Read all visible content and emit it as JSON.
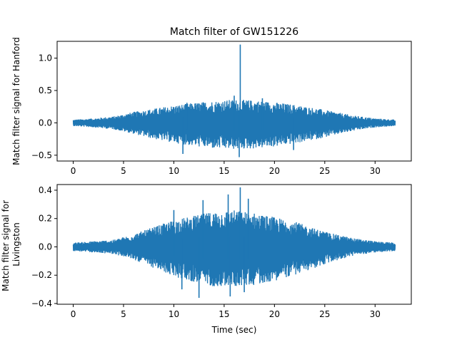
{
  "figure_title": "Match filter of GW151226",
  "x_axis_label": "Time (sec)",
  "series_color": "#1f77b4",
  "chart_data": [
    {
      "type": "line",
      "title": "Match filter of GW151226",
      "ylabel": "Match filter signal for Hanford",
      "xlabel": "",
      "xlim": [
        -1.6,
        33.6
      ],
      "ylim": [
        -0.59,
        1.26
      ],
      "x_ticks": [
        0,
        5,
        10,
        15,
        20,
        25,
        30
      ],
      "x_tick_labels": [
        "0",
        "5",
        "10",
        "15",
        "20",
        "25",
        "30"
      ],
      "y_ticks": [
        -0.5,
        0.0,
        0.5,
        1.0
      ],
      "y_tick_labels": [
        "−0.5",
        "0.0",
        "0.5",
        "1.0"
      ],
      "grid": false,
      "x_range": [
        0,
        32
      ],
      "envelope": {
        "time": [
          0,
          2,
          4,
          6,
          8,
          10,
          12,
          14,
          16,
          18,
          20,
          22,
          24,
          26,
          28,
          30,
          32
        ],
        "upper": [
          0.05,
          0.07,
          0.1,
          0.17,
          0.22,
          0.27,
          0.31,
          0.34,
          0.36,
          0.35,
          0.32,
          0.28,
          0.23,
          0.17,
          0.11,
          0.07,
          0.05
        ],
        "lower": [
          -0.05,
          -0.07,
          -0.1,
          -0.17,
          -0.25,
          -0.31,
          -0.36,
          -0.4,
          -0.41,
          -0.4,
          -0.37,
          -0.32,
          -0.26,
          -0.19,
          -0.12,
          -0.07,
          -0.05
        ]
      },
      "spikes": [
        {
          "x": 16.6,
          "y": 1.21
        },
        {
          "x": 16.0,
          "y": 0.42
        },
        {
          "x": 16.5,
          "y": -0.53
        },
        {
          "x": 10.9,
          "y": -0.48
        },
        {
          "x": 11.3,
          "y": 0.31
        },
        {
          "x": 18.8,
          "y": 0.38
        },
        {
          "x": 21.9,
          "y": -0.42
        }
      ]
    },
    {
      "type": "line",
      "title": "",
      "ylabel": "Match filter signal for Livingston",
      "xlabel": "Time (sec)",
      "xlim": [
        -1.6,
        33.6
      ],
      "ylim": [
        -0.405,
        0.44
      ],
      "x_ticks": [
        0,
        5,
        10,
        15,
        20,
        25,
        30
      ],
      "x_tick_labels": [
        "0",
        "5",
        "10",
        "15",
        "20",
        "25",
        "30"
      ],
      "y_ticks": [
        -0.4,
        -0.2,
        0.0,
        0.2,
        0.4
      ],
      "y_tick_labels": [
        "−0.4",
        "−0.2",
        "0.0",
        "0.2",
        "0.4"
      ],
      "grid": false,
      "x_range": [
        0,
        32
      ],
      "envelope": {
        "time": [
          0,
          2,
          4,
          6,
          8,
          10,
          12,
          14,
          16,
          18,
          20,
          22,
          24,
          26,
          28,
          30,
          32
        ],
        "upper": [
          0.03,
          0.04,
          0.05,
          0.09,
          0.14,
          0.19,
          0.22,
          0.25,
          0.26,
          0.24,
          0.21,
          0.18,
          0.13,
          0.09,
          0.06,
          0.04,
          0.03
        ],
        "lower": [
          -0.03,
          -0.04,
          -0.05,
          -0.09,
          -0.15,
          -0.21,
          -0.25,
          -0.28,
          -0.28,
          -0.27,
          -0.24,
          -0.2,
          -0.15,
          -0.1,
          -0.06,
          -0.04,
          -0.03
        ]
      },
      "spikes": [
        {
          "x": 16.6,
          "y": 0.42
        },
        {
          "x": 10.0,
          "y": 0.26
        },
        {
          "x": 12.9,
          "y": 0.33
        },
        {
          "x": 15.4,
          "y": 0.37
        },
        {
          "x": 17.4,
          "y": 0.34
        },
        {
          "x": 10.8,
          "y": -0.3
        },
        {
          "x": 12.5,
          "y": -0.36
        },
        {
          "x": 15.6,
          "y": -0.35
        },
        {
          "x": 17.0,
          "y": -0.32
        }
      ]
    }
  ]
}
